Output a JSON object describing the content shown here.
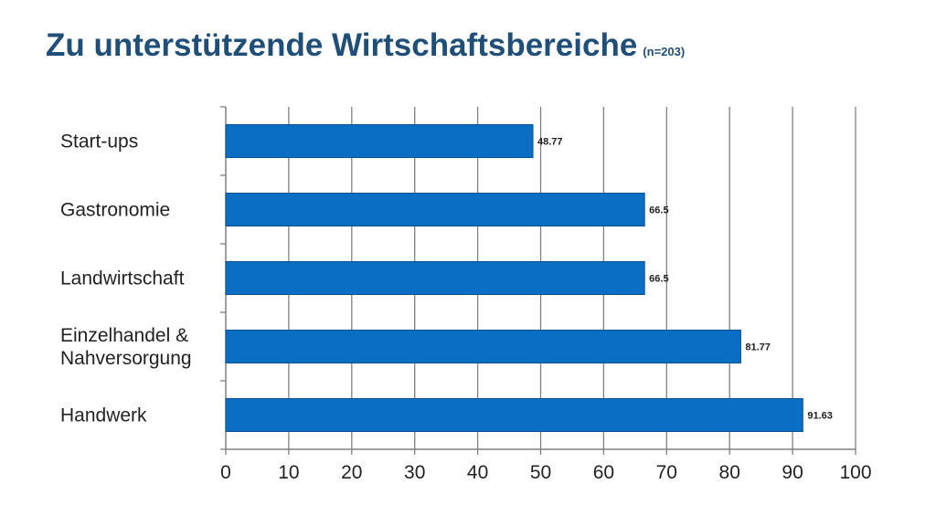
{
  "header": {
    "title": "Zu unterstützende Wirtschaftsbereiche",
    "sample": "(n=203)"
  },
  "chart_data": {
    "type": "bar",
    "orientation": "horizontal",
    "categories": [
      [
        "Start-ups"
      ],
      [
        "Gastronomie"
      ],
      [
        "Landwirtschaft"
      ],
      [
        "Einzelhandel &",
        "Nahversorgung"
      ],
      [
        "Handwerk"
      ]
    ],
    "values": [
      48.77,
      66.5,
      66.5,
      81.77,
      91.63
    ],
    "data_labels": [
      "48.77",
      "66.5",
      "66.5",
      "81.77",
      "91.63"
    ],
    "xlim": [
      0,
      100
    ],
    "xticks": [
      0,
      10,
      20,
      30,
      40,
      50,
      60,
      70,
      80,
      90,
      100
    ],
    "grid": true,
    "legend": "none",
    "bar_color": "#0a6ec4",
    "bar_edge_color": "#0a4f8f",
    "grid_color": "#808080",
    "title_color": "#1f4e79"
  }
}
